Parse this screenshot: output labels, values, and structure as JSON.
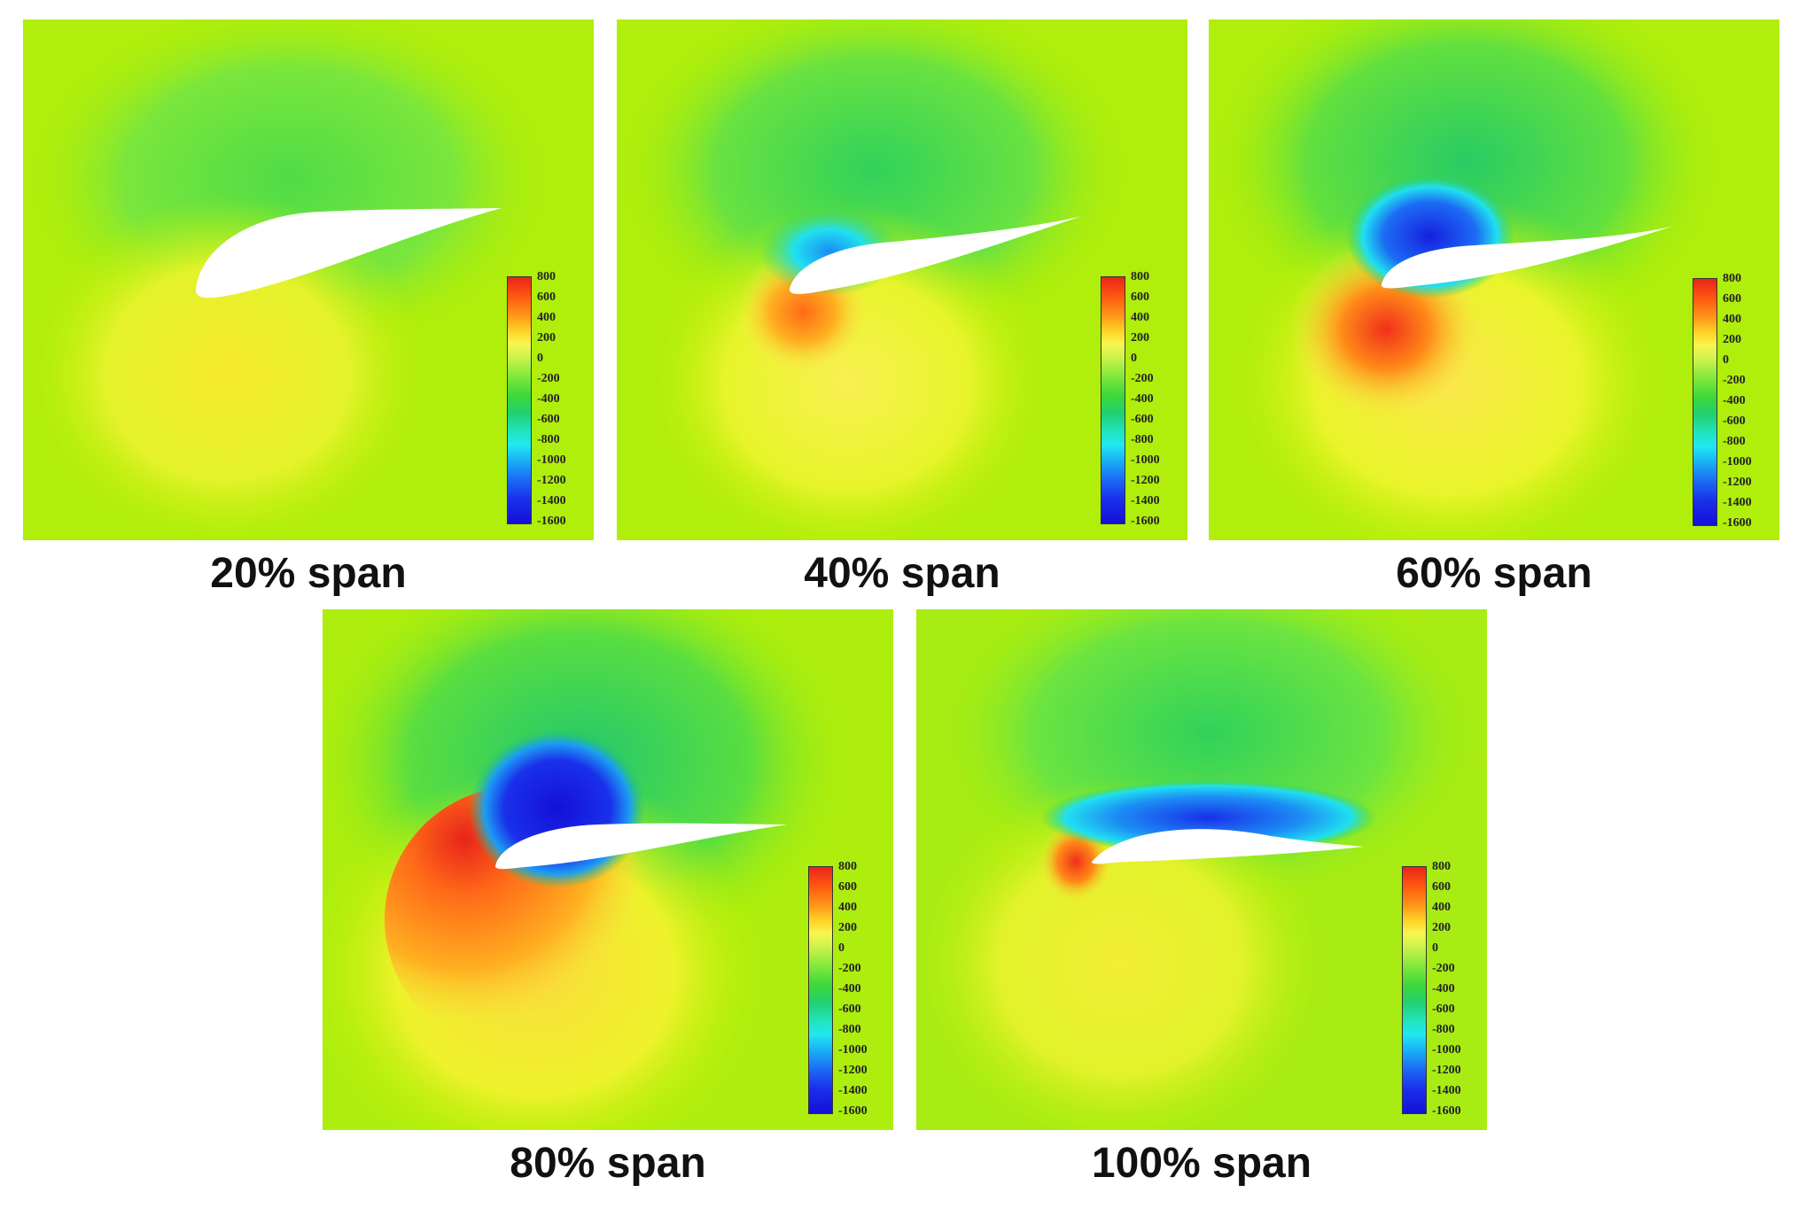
{
  "panels": [
    {
      "caption": "20% span"
    },
    {
      "caption": "40% span"
    },
    {
      "caption": "60% span"
    },
    {
      "caption": "80% span"
    },
    {
      "caption": "100% span"
    }
  ],
  "legend": {
    "ticks": [
      "800",
      "600",
      "400",
      "200",
      "0",
      "-200",
      "-400",
      "-600",
      "-800",
      "-1000",
      "-1200",
      "-1400",
      "-1600"
    ],
    "colors": [
      "#e8241a",
      "#ff9a18",
      "#ffd428",
      "#c8f24a",
      "#84e83c",
      "#22d070",
      "#20e8f0",
      "#1c6cf4",
      "#1410d8"
    ]
  },
  "field_colors": {
    "background": "#b7f000",
    "far_field": "#a8ec14",
    "suction_green": "#5ee64a",
    "suction_strong": "#1a30ea",
    "pressure_yellow": "#e6f22a",
    "pressure_orange": "#ffa01e",
    "pressure_red": "#e8241a",
    "airfoil": "#ffffff"
  }
}
